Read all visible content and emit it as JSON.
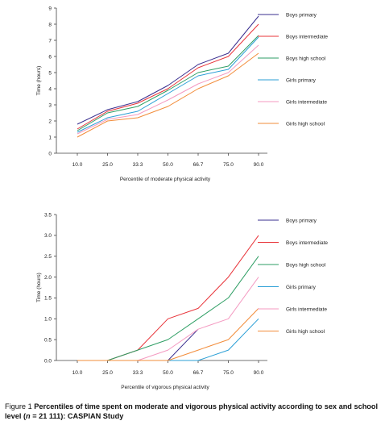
{
  "chart_data": [
    {
      "type": "line",
      "xlabel": "Percentile of moderate physical activity",
      "ylabel": "Time (hours)",
      "categories": [
        "10.0",
        "25.0",
        "33.3",
        "50.0",
        "66.7",
        "75.0",
        "90.0"
      ],
      "yticks": [
        "0",
        "1",
        "2",
        "3",
        "4",
        "5",
        "6",
        "7",
        "8",
        "9"
      ],
      "ylim": [
        0,
        9
      ],
      "legend_position": "right",
      "series": [
        {
          "name": "Boys primary",
          "color": "#3a2f8f",
          "values": [
            1.8,
            2.7,
            3.2,
            4.2,
            5.5,
            6.2,
            8.5
          ]
        },
        {
          "name": "Boys intermediate",
          "color": "#e8343a",
          "values": [
            1.5,
            2.6,
            3.1,
            4.0,
            5.3,
            6.0,
            8.0
          ]
        },
        {
          "name": "Boys high school",
          "color": "#2e9e64",
          "values": [
            1.4,
            2.5,
            2.9,
            3.9,
            5.0,
            5.4,
            7.3
          ]
        },
        {
          "name": "Girls primary",
          "color": "#2b9fd6",
          "values": [
            1.3,
            2.2,
            2.6,
            3.7,
            4.8,
            5.2,
            7.2
          ]
        },
        {
          "name": "Girls intermediate",
          "color": "#f49ac1",
          "values": [
            1.2,
            2.1,
            2.4,
            3.3,
            4.3,
            5.0,
            6.7
          ]
        },
        {
          "name": "Girls high school",
          "color": "#f28c3a",
          "values": [
            1.0,
            2.0,
            2.2,
            2.9,
            4.0,
            4.8,
            6.2
          ]
        }
      ]
    },
    {
      "type": "line",
      "xlabel": "Percentile of vigorous physical activity",
      "ylabel": "Time (hours)",
      "categories": [
        "10.0",
        "25.0",
        "33.3",
        "50.0",
        "66.7",
        "75.0",
        "90.0"
      ],
      "yticks": [
        "0.0",
        "0.5",
        "1.0",
        "1.5",
        "2.0",
        "2.5",
        "3.0",
        "3.5"
      ],
      "ylim": [
        0,
        3.5
      ],
      "legend_position": "right",
      "series": [
        {
          "name": "Boys primary",
          "color": "#3a2f8f",
          "values": [
            0,
            0,
            0,
            0,
            0.75,
            null,
            null
          ]
        },
        {
          "name": "Boys intermediate",
          "color": "#e8343a",
          "values": [
            0,
            0,
            0.25,
            1.0,
            1.25,
            2.0,
            3.0
          ]
        },
        {
          "name": "Boys high school",
          "color": "#2e9e64",
          "values": [
            0,
            0,
            0.25,
            0.5,
            1.0,
            1.5,
            2.5
          ]
        },
        {
          "name": "Girls primary",
          "color": "#2b9fd6",
          "values": [
            0,
            0,
            0,
            0,
            0,
            0.25,
            1.0
          ]
        },
        {
          "name": "Girls intermediate",
          "color": "#f49ac1",
          "values": [
            0,
            0,
            0,
            0.25,
            0.75,
            1.0,
            2.0
          ]
        },
        {
          "name": "Girls high school",
          "color": "#f28c3a",
          "values": [
            0,
            0,
            0,
            0,
            0.25,
            0.5,
            1.25
          ]
        }
      ]
    }
  ],
  "caption": {
    "prefix": "Figure 1 ",
    "bold": "Percentiles of time spent on moderate and vigorous physical activity according to sex and school level (",
    "n_italic": "n",
    "bold_end": " = 21 111): CASPIAN Study"
  }
}
